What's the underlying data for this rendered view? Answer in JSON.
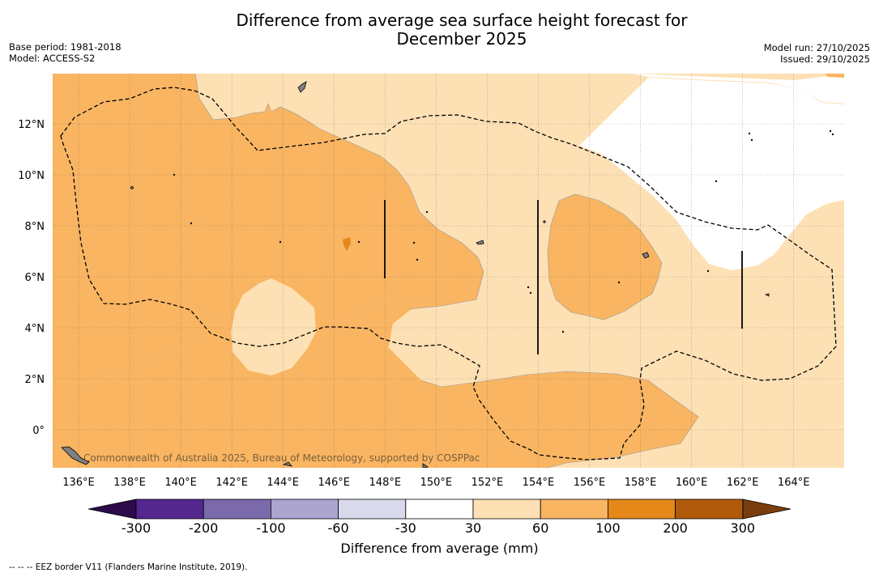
{
  "header": {
    "title_line1": "Difference from average sea surface height forecast for",
    "title_line2": "December 2025",
    "base_period": "Base period: 1981-2018",
    "model": "Model: ACCESS-S2",
    "model_run": "Model run: 27/10/2025",
    "issued": "Issued: 29/10/2025"
  },
  "map": {
    "lon_ticks": [
      "136°E",
      "138°E",
      "140°E",
      "142°E",
      "144°E",
      "146°E",
      "148°E",
      "150°E",
      "152°E",
      "154°E",
      "156°E",
      "158°E",
      "160°E",
      "162°E",
      "164°E"
    ],
    "lat_ticks": [
      "12°N",
      "10°N",
      "8°N",
      "6°N",
      "4°N",
      "2°N",
      "0°"
    ],
    "attribution": "Commonwealth of Australia 2025, Bureau of Meteorology, supported by COSPPac",
    "colors": {
      "c30_60": "#fde0b4",
      "c60_100": "#f9b562",
      "c100_200": "#e38819",
      "land": "#808080",
      "eez": "#000000"
    }
  },
  "colorbar": {
    "title": "Difference from average (mm)",
    "tick_labels": [
      "-300",
      "-200",
      "-100",
      "-60",
      "-30",
      "30",
      "60",
      "100",
      "200",
      "300"
    ],
    "colors": {
      "under": "#2d0a4b",
      "c_300_200": "#54278f",
      "c_200_100": "#7b6aab",
      "c_100_60": "#aba5d0",
      "c_60_30": "#d9d9ec",
      "c_30_30": "#ffffff",
      "c30_60": "#fde0b4",
      "c60_100": "#f9b562",
      "c100_200": "#e38819",
      "c200_300": "#b15a0b",
      "over": "#7a3e0c"
    }
  },
  "footnote": "--  --  -- EEZ border V11 (Flanders Marine Institute, 2019)."
}
